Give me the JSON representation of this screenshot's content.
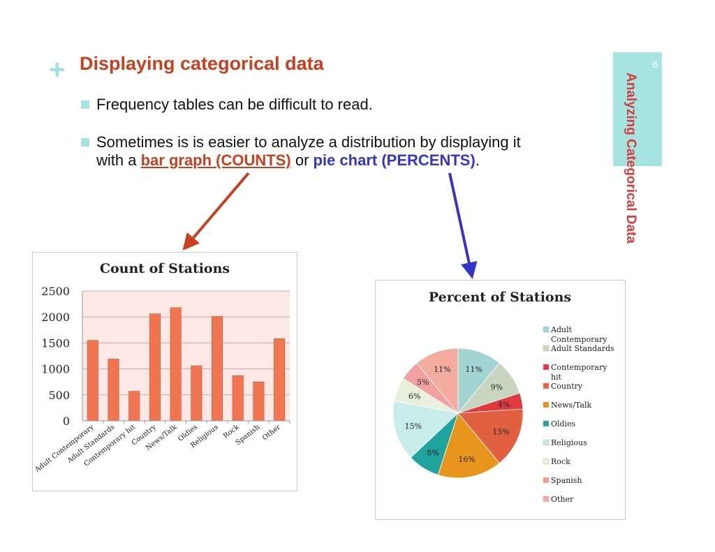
{
  "slide": {
    "plus": "+",
    "title": "Displaying categorical data",
    "page_number": "6",
    "side_title": "Analyzing Categorical Data",
    "bullet1": "Frequency tables can be difficult to read.",
    "bullet2_line1": "Sometimes is is easier to analyze a distribution by displaying it",
    "bullet2_with": "with a ",
    "bullet2_bar": "bar graph (COUNTS)",
    "bullet2_or": " or ",
    "bullet2_pie": "pie chart (PERCENTS)",
    "bullet2_end": ".",
    "colors": {
      "title": "#c8401e",
      "accent": "#a5e4e0",
      "side_title": "#d93b3b",
      "bar_arrow": "#c8401e",
      "pie_arrow": "#3434c8"
    }
  },
  "chart_data": [
    {
      "type": "bar",
      "title": "Count of Stations",
      "categories": [
        "Adult Contemporary",
        "Adult Standards",
        "Contemporary hit",
        "Country",
        "News/Talk",
        "Oldies",
        "Religious",
        "Rock",
        "Spanish",
        "Other"
      ],
      "values": [
        1550,
        1190,
        570,
        2060,
        2180,
        1060,
        2010,
        870,
        750,
        1580
      ],
      "ylim": [
        0,
        2500
      ],
      "yticks": [
        "0",
        "500",
        "1000",
        "1500",
        "2000",
        "2500"
      ],
      "bar_color": "#f07550",
      "plot_background": "#fde8e6",
      "grid": true
    },
    {
      "type": "pie",
      "title": "Percent of Stations",
      "labels": [
        "Adult Contemporary",
        "Adult Standards",
        "Contemporary hit",
        "Country",
        "News/Talk",
        "Oldies",
        "Religious",
        "Rock",
        "Spanish",
        "Other"
      ],
      "values": [
        11,
        9,
        4,
        15,
        16,
        8,
        15,
        6,
        5,
        11
      ],
      "slice_labels": [
        "11%",
        "9%",
        "4%",
        "15%",
        "16%",
        "8%",
        "15%",
        "6%",
        "5%",
        "11%"
      ],
      "colors": [
        "#a2d4d4",
        "#c8d6c0",
        "#e03a3e",
        "#e06040",
        "#e8951e",
        "#1fa39c",
        "#c8ecea",
        "#eaf0de",
        "#f2a0a0",
        "#f4aca0"
      ],
      "legend": [
        "Adult Contemporary",
        "Adult Standards",
        "Contemporary hit",
        "Country",
        "News/Talk",
        "Oldies",
        "Religious",
        "Rock",
        "Spanish",
        "Other"
      ],
      "legend_position": "right"
    }
  ]
}
